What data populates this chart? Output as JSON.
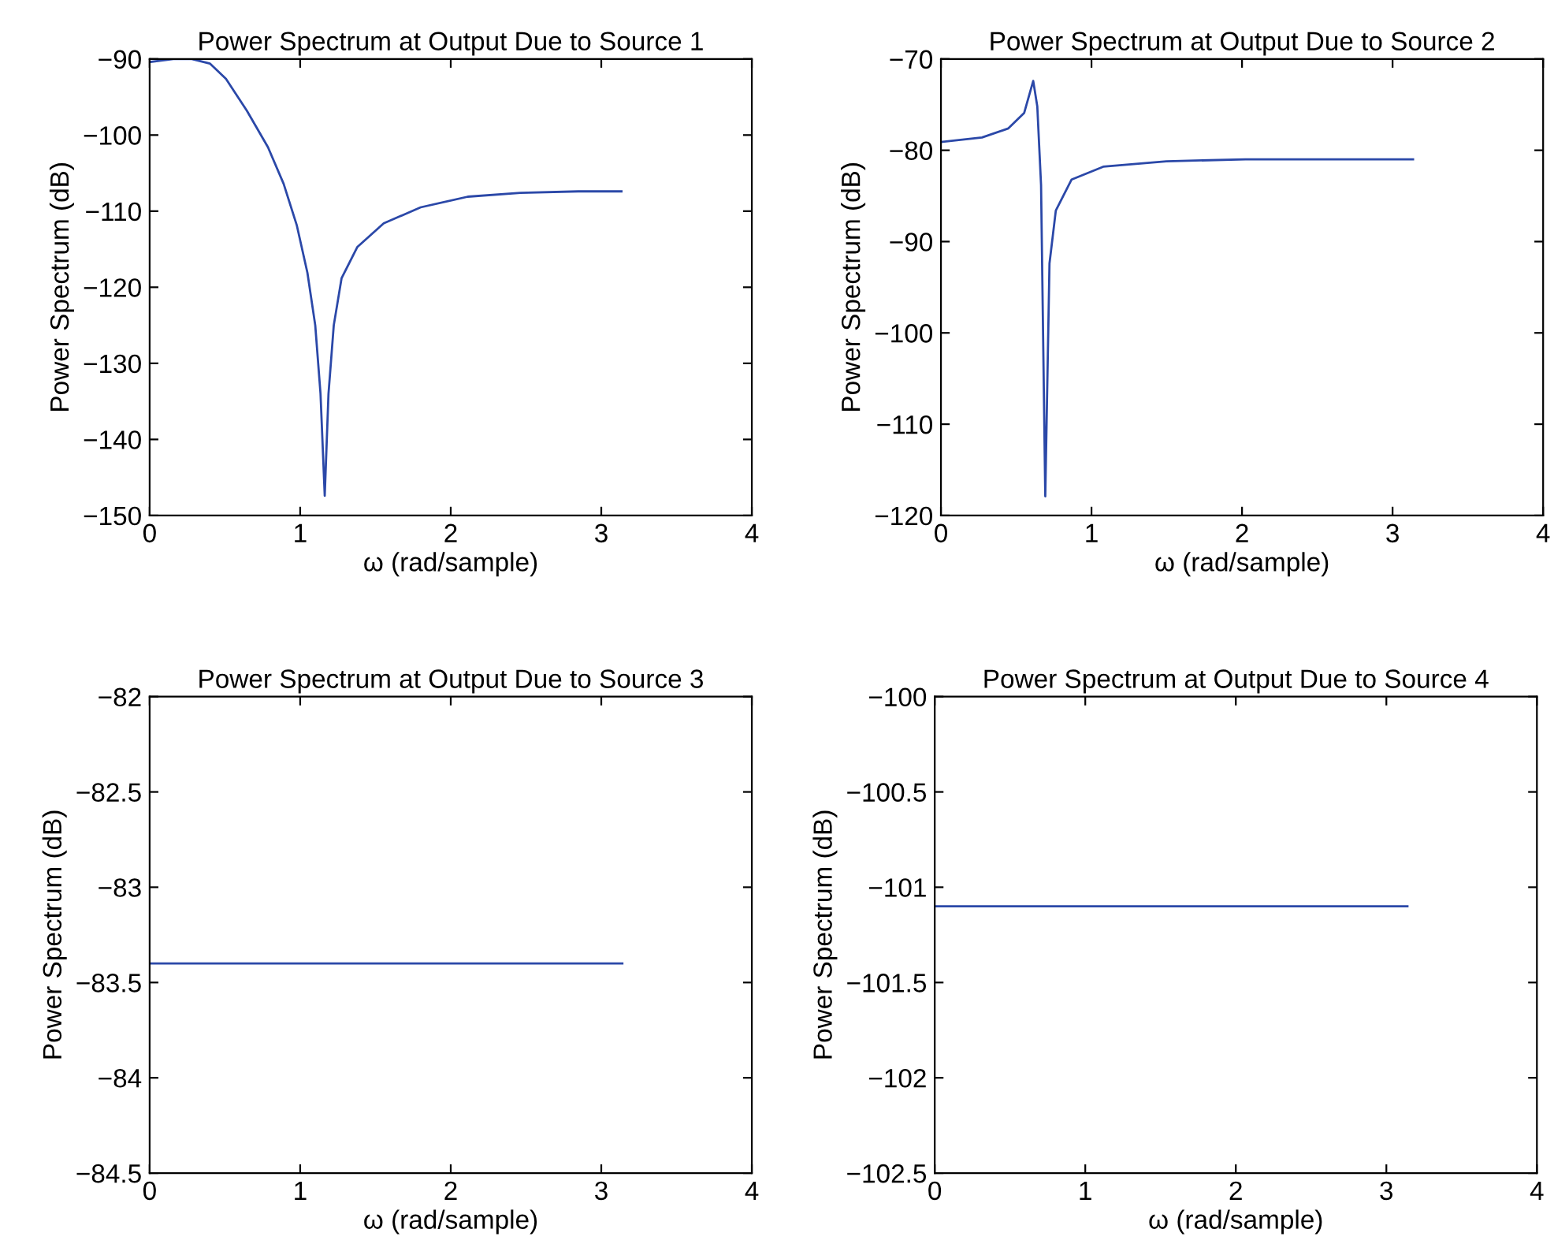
{
  "chart_data": [
    {
      "type": "line",
      "title": "Power Spectrum at Output Due to Source 1",
      "xlabel": "ω (rad/sample)",
      "ylabel": "Power Spectrum (dB)",
      "xlim": [
        0,
        4
      ],
      "xticks": [
        0,
        1,
        2,
        3,
        4
      ],
      "ylim": [
        -150,
        -90
      ],
      "yticks": [
        -150,
        -140,
        -130,
        -120,
        -110,
        -100,
        -90
      ],
      "grid": false,
      "legend": false,
      "series": [
        {
          "color": "#2b48a8",
          "x": [
            0,
            0.157,
            0.28,
            0.4,
            0.507,
            0.646,
            0.786,
            0.89,
            0.978,
            1.048,
            1.1,
            1.135,
            1.163,
            1.188,
            1.223,
            1.275,
            1.38,
            1.555,
            1.8,
            2.113,
            2.463,
            2.847,
            3.134
          ],
          "values": [
            -90.4,
            -90.0,
            -90.0,
            -90.6,
            -92.6,
            -96.8,
            -101.6,
            -106.4,
            -111.9,
            -118.1,
            -125.0,
            -134.0,
            -147.4,
            -134.0,
            -125.0,
            -118.8,
            -114.7,
            -111.6,
            -109.5,
            -108.1,
            -107.6,
            -107.4,
            -107.4
          ]
        }
      ]
    },
    {
      "type": "line",
      "title": "Power Spectrum at Output Due to Source 2",
      "xlabel": "ω (rad/sample)",
      "ylabel": "Power Spectrum (dB)",
      "xlim": [
        0,
        4
      ],
      "xticks": [
        0,
        1,
        2,
        3,
        4
      ],
      "ylim": [
        -120,
        -70
      ],
      "yticks": [
        -120,
        -110,
        -100,
        -90,
        -80,
        -70
      ],
      "grid": false,
      "legend": false,
      "series": [
        {
          "color": "#2b48a8",
          "x": [
            0,
            0.273,
            0.448,
            0.553,
            0.613,
            0.64,
            0.665,
            0.693,
            0.721,
            0.763,
            0.868,
            1.078,
            1.498,
            2.023,
            3.136
          ],
          "values": [
            -79.1,
            -78.6,
            -77.6,
            -75.9,
            -72.4,
            -75.2,
            -83.8,
            -117.9,
            -92.4,
            -86.6,
            -83.2,
            -81.8,
            -81.2,
            -81.0,
            -81.0
          ]
        }
      ]
    },
    {
      "type": "line",
      "title": "Power Spectrum at Output Due to Source 3",
      "xlabel": "ω (rad/sample)",
      "ylabel": "Power Spectrum (dB)",
      "xlim": [
        0,
        4
      ],
      "xticks": [
        0,
        1,
        2,
        3,
        4
      ],
      "ylim": [
        -84.5,
        -82
      ],
      "yticks": [
        -84.5,
        -84,
        -83.5,
        -83,
        -82.5,
        -82
      ],
      "grid": false,
      "legend": false,
      "series": [
        {
          "color": "#2b48a8",
          "x": [
            0,
            3.14
          ],
          "values": [
            -83.4,
            -83.4
          ]
        }
      ]
    },
    {
      "type": "line",
      "title": "Power Spectrum at Output Due to Source 4",
      "xlabel": "ω (rad/sample)",
      "ylabel": "Power Spectrum (dB)",
      "xlim": [
        0,
        4
      ],
      "xticks": [
        0,
        1,
        2,
        3,
        4
      ],
      "ylim": [
        -102.5,
        -100
      ],
      "yticks": [
        -102.5,
        -102,
        -101.5,
        -101,
        -100.5,
        -100
      ],
      "grid": false,
      "legend": false,
      "series": [
        {
          "color": "#2b48a8",
          "x": [
            0,
            3.14
          ],
          "values": [
            -101.1,
            -101.1
          ]
        }
      ]
    }
  ]
}
